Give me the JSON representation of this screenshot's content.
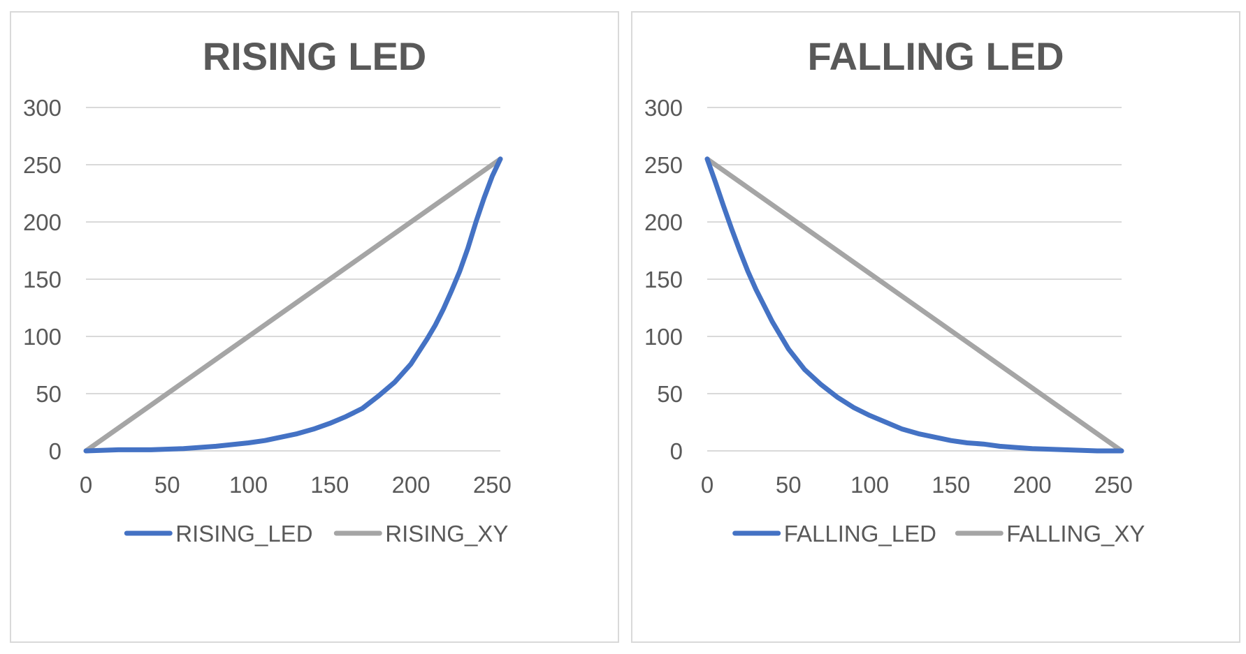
{
  "chart_data": [
    {
      "type": "line",
      "title": "RISING LED",
      "xlabel": "",
      "ylabel": "",
      "xlim": [
        0,
        250
      ],
      "ylim": [
        0,
        300
      ],
      "xticks": [
        "0",
        "50",
        "100",
        "150",
        "200",
        "250"
      ],
      "yticks": [
        "0",
        "50",
        "100",
        "150",
        "200",
        "250",
        "300"
      ],
      "grid": true,
      "legend_position": "bottom",
      "series": [
        {
          "name": "RISING_LED",
          "color": "#4472c4",
          "x": [
            0,
            20,
            40,
            60,
            80,
            100,
            110,
            120,
            130,
            140,
            150,
            160,
            170,
            180,
            190,
            200,
            210,
            215,
            220,
            225,
            230,
            235,
            240,
            245,
            250,
            255
          ],
          "y": [
            0,
            1,
            1,
            2,
            4,
            7,
            9,
            12,
            15,
            19,
            24,
            30,
            37,
            48,
            60,
            76,
            98,
            110,
            124,
            140,
            157,
            177,
            200,
            221,
            240,
            255
          ]
        },
        {
          "name": "RISING_XY",
          "color": "#a5a5a5",
          "x": [
            0,
            255
          ],
          "y": [
            0,
            255
          ]
        }
      ]
    },
    {
      "type": "line",
      "title": "FALLING LED",
      "xlabel": "",
      "ylabel": "",
      "xlim": [
        0,
        250
      ],
      "ylim": [
        0,
        300
      ],
      "xticks": [
        "0",
        "50",
        "100",
        "150",
        "200",
        "250"
      ],
      "yticks": [
        "0",
        "50",
        "100",
        "150",
        "200",
        "250",
        "300"
      ],
      "grid": true,
      "legend_position": "bottom",
      "series": [
        {
          "name": "FALLING_LED",
          "color": "#4472c4",
          "x": [
            0,
            5,
            10,
            15,
            20,
            25,
            30,
            40,
            50,
            60,
            70,
            80,
            90,
            100,
            110,
            120,
            130,
            140,
            150,
            160,
            170,
            180,
            190,
            200,
            220,
            240,
            255
          ],
          "y": [
            255,
            235,
            214,
            194,
            175,
            157,
            141,
            113,
            89,
            71,
            58,
            47,
            38,
            31,
            25,
            19,
            15,
            12,
            9,
            7,
            6,
            4,
            3,
            2,
            1,
            0,
            0
          ]
        },
        {
          "name": "FALLING_XY",
          "color": "#a5a5a5",
          "x": [
            0,
            255
          ],
          "y": [
            255,
            0
          ]
        }
      ]
    }
  ]
}
